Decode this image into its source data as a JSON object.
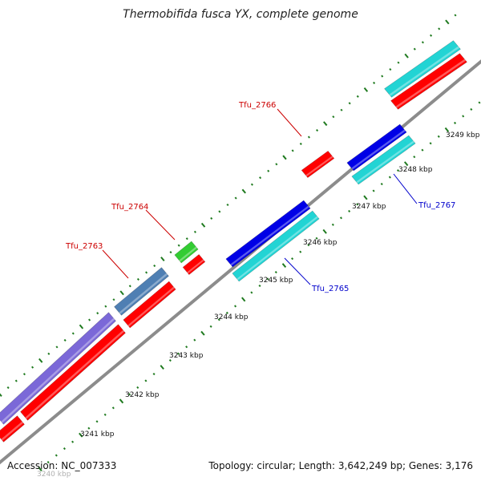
{
  "title": "Thermobifida fusca YX, complete genome",
  "footer": {
    "accession": "Accession: NC_007333",
    "summary": "Topology: circular; Length: 3,642,249 bp; Genes: 3,176"
  },
  "colors": {
    "backbone": "#8c8c8c",
    "tick": "#1f7a1f",
    "tick_dim": "#7fb07f",
    "label_red": "#cc0000",
    "label_blue": "#0000cc",
    "red": "#ff0000",
    "blue": "#0000e6",
    "cyan": "#22d4d4",
    "steelblue": "#4f7fb3",
    "purple": "#7b68d8",
    "green": "#33cc33"
  },
  "ticks": [
    {
      "label": "3240 kbp",
      "dim": true
    },
    {
      "label": "3241 kbp"
    },
    {
      "label": "3242 kbp"
    },
    {
      "label": "3243 kbp"
    },
    {
      "label": "3244 kbp"
    },
    {
      "label": "3245 kbp"
    },
    {
      "label": "3246 kbp"
    },
    {
      "label": "3247 kbp"
    },
    {
      "label": "3248 kbp"
    },
    {
      "label": "3249 kbp"
    }
  ],
  "gene_labels": [
    {
      "name": "Tfu_2763",
      "color": "red"
    },
    {
      "name": "Tfu_2764",
      "color": "red"
    },
    {
      "name": "Tfu_2765",
      "color": "blue"
    },
    {
      "name": "Tfu_2766",
      "color": "red"
    },
    {
      "name": "Tfu_2767",
      "color": "blue"
    }
  ]
}
